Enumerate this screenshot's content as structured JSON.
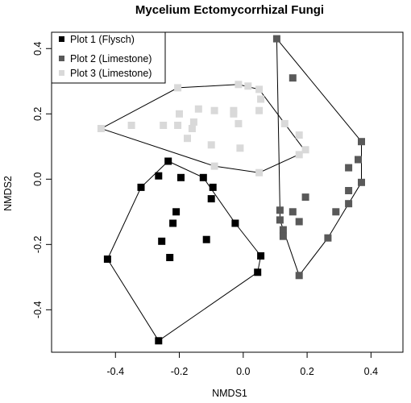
{
  "chart_data": {
    "type": "scatter",
    "title": "Mycelium Ectomycorrhizal Fungi",
    "xlabel": "NMDS1",
    "ylabel": "NMDS2",
    "xlim": [
      -0.6,
      0.5
    ],
    "ylim": [
      -0.53,
      0.45
    ],
    "xticks": [
      -0.4,
      -0.2,
      0.0,
      0.2,
      0.4
    ],
    "yticks": [
      -0.4,
      -0.2,
      0.0,
      0.2,
      0.4
    ],
    "xtick_labels": [
      "-0.4",
      "-0.2",
      "0.0",
      "0.2",
      "0.4"
    ],
    "ytick_labels": [
      "-0.4",
      "-0.2",
      "0.0",
      "0.2",
      "0.4"
    ],
    "grid": false,
    "legend_position": "top-left",
    "series": [
      {
        "name": "Plot 1 (Flysch)",
        "color": "#000000",
        "hull_color": "#000000",
        "points": [
          [
            -0.235,
            0.055
          ],
          [
            -0.265,
            0.01
          ],
          [
            -0.32,
            -0.025
          ],
          [
            -0.195,
            0.005
          ],
          [
            -0.125,
            0.005
          ],
          [
            -0.095,
            -0.025
          ],
          [
            -0.21,
            -0.1
          ],
          [
            -0.22,
            -0.135
          ],
          [
            -0.1,
            -0.06
          ],
          [
            -0.025,
            -0.135
          ],
          [
            -0.255,
            -0.19
          ],
          [
            -0.115,
            -0.185
          ],
          [
            -0.23,
            -0.24
          ],
          [
            -0.425,
            -0.245
          ],
          [
            0.055,
            -0.235
          ],
          [
            0.045,
            -0.285
          ],
          [
            -0.265,
            -0.495
          ]
        ],
        "hull": [
          [
            -0.235,
            0.055
          ],
          [
            -0.125,
            0.005
          ],
          [
            -0.025,
            -0.135
          ],
          [
            0.055,
            -0.235
          ],
          [
            0.045,
            -0.285
          ],
          [
            -0.265,
            -0.495
          ],
          [
            -0.425,
            -0.245
          ],
          [
            -0.32,
            -0.025
          ]
        ]
      },
      {
        "name": "Plot 2 (Limestone)",
        "color": "#595959",
        "hull_color": "#000000",
        "points": [
          [
            0.105,
            0.43
          ],
          [
            0.155,
            0.31
          ],
          [
            0.37,
            0.115
          ],
          [
            0.36,
            0.06
          ],
          [
            0.33,
            0.035
          ],
          [
            0.37,
            -0.01
          ],
          [
            0.33,
            -0.035
          ],
          [
            0.195,
            -0.055
          ],
          [
            0.33,
            -0.075
          ],
          [
            0.115,
            -0.095
          ],
          [
            0.155,
            -0.1
          ],
          [
            0.29,
            -0.1
          ],
          [
            0.115,
            -0.125
          ],
          [
            0.175,
            -0.13
          ],
          [
            0.125,
            -0.155
          ],
          [
            0.125,
            -0.175
          ],
          [
            0.265,
            -0.18
          ],
          [
            0.175,
            -0.295
          ]
        ],
        "hull": [
          [
            0.105,
            0.43
          ],
          [
            0.37,
            0.115
          ],
          [
            0.37,
            -0.01
          ],
          [
            0.265,
            -0.18
          ],
          [
            0.175,
            -0.295
          ],
          [
            0.115,
            -0.125
          ],
          [
            0.115,
            -0.095
          ]
        ]
      },
      {
        "name": "Plot 3 (Limestone)",
        "color": "#d9d9d9",
        "hull_color": "#000000",
        "points": [
          [
            -0.445,
            0.155
          ],
          [
            -0.35,
            0.165
          ],
          [
            -0.205,
            0.28
          ],
          [
            -0.25,
            0.165
          ],
          [
            -0.205,
            0.165
          ],
          [
            -0.2,
            0.2
          ],
          [
            -0.14,
            0.215
          ],
          [
            -0.155,
            0.175
          ],
          [
            -0.175,
            0.125
          ],
          [
            -0.09,
            0.21
          ],
          [
            -0.03,
            0.21
          ],
          [
            -0.03,
            0.2
          ],
          [
            -0.16,
            0.155
          ],
          [
            -0.1,
            0.105
          ],
          [
            -0.015,
            0.29
          ],
          [
            0.015,
            0.285
          ],
          [
            0.05,
            0.275
          ],
          [
            0.055,
            0.245
          ],
          [
            0.05,
            0.21
          ],
          [
            -0.01,
            0.095
          ],
          [
            -0.015,
            0.17
          ],
          [
            -0.09,
            0.04
          ],
          [
            0.05,
            0.02
          ],
          [
            0.175,
            0.075
          ],
          [
            0.175,
            0.135
          ],
          [
            0.195,
            0.09
          ],
          [
            0.13,
            0.17
          ]
        ],
        "hull": [
          [
            -0.445,
            0.155
          ],
          [
            -0.205,
            0.28
          ],
          [
            -0.015,
            0.29
          ],
          [
            0.05,
            0.275
          ],
          [
            0.195,
            0.085
          ],
          [
            0.05,
            0.02
          ],
          [
            -0.09,
            0.04
          ]
        ]
      }
    ]
  }
}
